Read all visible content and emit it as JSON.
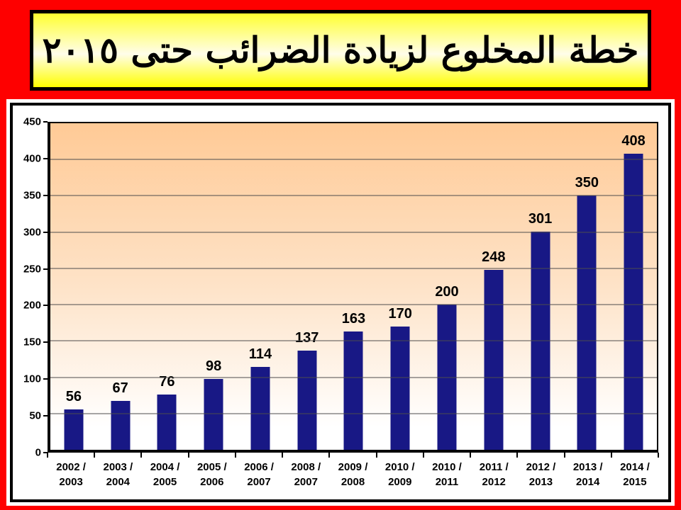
{
  "title": {
    "text": "خطة المخلوع لزيادة الضرائب حتى ٢٠١٥"
  },
  "colors": {
    "page_bg": "#fe0000",
    "banner_gradient_top": "#ffff30",
    "banner_gradient_mid": "#fffdea",
    "banner_gradient_bottom": "#ffff00",
    "banner_border": "#000000",
    "bar": "#181885",
    "plot_bg_top": "#ffca96",
    "plot_bg_bottom": "#ffffff",
    "gridline": "#4d4d4d",
    "axis": "#000000",
    "text": "#000000"
  },
  "chart_data": {
    "type": "bar",
    "title": "خطة المخلوع لزيادة الضرائب حتى ٢٠١٥",
    "categories": [
      "2002 /\n2003",
      "2003 /\n2004",
      "2004 /\n2005",
      "2005 /\n2006",
      "2006 /\n2007",
      "2008 /\n2007",
      "2009 /\n2008",
      "2010 /\n2009",
      "2010 /\n2011",
      "2011 /\n2012",
      "2012 /\n2013",
      "2013 /\n2014",
      "2014 /\n2015"
    ],
    "values": [
      56,
      67,
      76,
      98,
      114,
      137,
      163,
      170,
      200,
      248,
      301,
      350,
      408
    ],
    "data_labels": [
      56,
      67,
      76,
      98,
      114,
      137,
      163,
      170,
      200,
      248,
      301,
      350,
      408
    ],
    "xlabel": "",
    "ylabel": "",
    "ylim": [
      0,
      450
    ],
    "yticks": [
      0,
      50,
      100,
      150,
      200,
      250,
      300,
      350,
      400,
      450
    ],
    "grid": true,
    "legend": "none",
    "bar_color": "#181885"
  }
}
